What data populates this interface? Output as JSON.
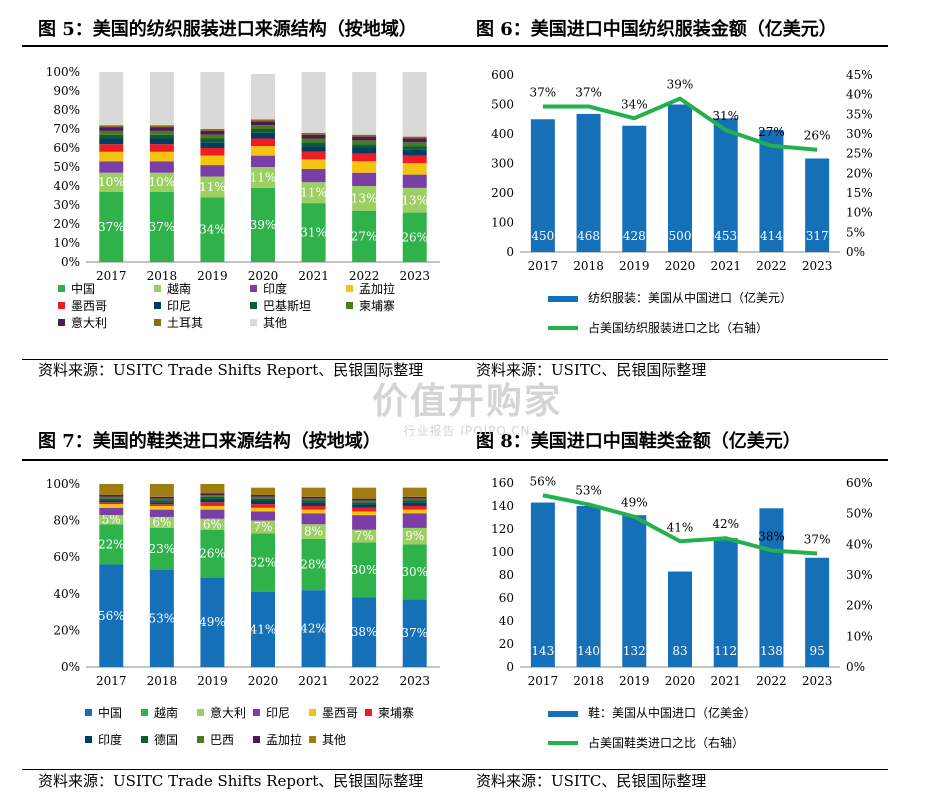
{
  "titles": {
    "fig5": "图 5：美国的纺织服装进口来源结构（按地域）",
    "fig6": "图 6：美国进口中国纺织服装金额（亿美元）",
    "fig7": "图 7：美国的鞋类进口来源结构（按地域）",
    "fig8": "图 8：美国进口中国鞋类金额（亿美元）"
  },
  "sources": {
    "fig5": "资料来源：USITC Trade Shifts Report、民银国际整理",
    "fig6": "资料来源：USITC、民银国际整理",
    "fig7": "资料来源：USITC Trade Shifts Report、民银国际整理",
    "fig8": "资料来源：USITC、民银国际整理"
  },
  "watermark": {
    "line1": "价值开购家",
    "line2": "行业报告 IPOIPO.CN"
  },
  "chart_data": [
    {
      "id": "fig5",
      "type": "bar",
      "stacked": true,
      "categories": [
        "2017",
        "2018",
        "2019",
        "2020",
        "2021",
        "2022",
        "2023"
      ],
      "ylim": [
        0,
        100
      ],
      "yticks": [
        "0%",
        "10%",
        "20%",
        "30%",
        "40%",
        "50%",
        "60%",
        "70%",
        "80%",
        "90%",
        "100%"
      ],
      "grid": false,
      "legend": "bottom",
      "series": [
        {
          "name": "中国",
          "color": "#2fb24a",
          "values": [
            37,
            37,
            34,
            39,
            31,
            27,
            26
          ],
          "labels": [
            "37%",
            "37%",
            "34%",
            "39%",
            "31%",
            "27%",
            "26%"
          ]
        },
        {
          "name": "越南",
          "color": "#9bcf63",
          "values": [
            10,
            10,
            11,
            11,
            11,
            13,
            13
          ],
          "labels": [
            "10%",
            "10%",
            "11%",
            "11%",
            "11%",
            "13%",
            "13%"
          ]
        },
        {
          "name": "印度",
          "color": "#7a3fa6",
          "values": [
            6,
            6,
            6,
            6,
            7,
            7,
            7
          ]
        },
        {
          "name": "孟加拉",
          "color": "#f5c412",
          "values": [
            5,
            5,
            5,
            5,
            5,
            6,
            6
          ]
        },
        {
          "name": "墨西哥",
          "color": "#ee1c25",
          "values": [
            4,
            4,
            4,
            4,
            4,
            4,
            4
          ]
        },
        {
          "name": "印尼",
          "color": "#003d62",
          "values": [
            3,
            3,
            3,
            3,
            3,
            3,
            3
          ]
        },
        {
          "name": "巴基斯坦",
          "color": "#0d5d2d",
          "values": [
            2,
            2,
            2,
            2,
            2,
            2,
            2
          ]
        },
        {
          "name": "柬埔寨",
          "color": "#4a7b1f",
          "values": [
            2,
            2,
            2,
            2,
            2,
            2,
            2
          ]
        },
        {
          "name": "意大利",
          "color": "#4b1a5a",
          "values": [
            2,
            2,
            2,
            2,
            2,
            2,
            2
          ]
        },
        {
          "name": "土耳其",
          "color": "#8f6b12",
          "values": [
            1,
            1,
            1,
            1,
            1,
            1,
            1
          ]
        },
        {
          "name": "其他",
          "color": "#d9d9d9",
          "values": [
            28,
            28,
            30,
            24,
            32,
            33,
            34
          ]
        }
      ],
      "legend_rows": [
        [
          "中国",
          "越南",
          "印度",
          "孟加拉"
        ],
        [
          "墨西哥",
          "印尼",
          "巴基斯坦",
          "柬埔寨"
        ],
        [
          "意大利",
          "土耳其",
          "其他"
        ]
      ]
    },
    {
      "id": "fig6",
      "type": "bar",
      "categories": [
        "2017",
        "2018",
        "2019",
        "2020",
        "2021",
        "2022",
        "2023"
      ],
      "ylim": [
        0,
        600
      ],
      "yticks": [
        "0",
        "100",
        "200",
        "300",
        "400",
        "500",
        "600"
      ],
      "y2lim": [
        0,
        45
      ],
      "y2ticks": [
        "0%",
        "5%",
        "10%",
        "15%",
        "20%",
        "25%",
        "30%",
        "35%",
        "40%",
        "45%"
      ],
      "grid": false,
      "legend": "bottom",
      "series": [
        {
          "name": "纺织服装：美国从中国进口（亿美元）",
          "kind": "bar",
          "axis": "left",
          "color": "#1570b8",
          "values": [
            450,
            468,
            428,
            500,
            453,
            414,
            317
          ],
          "labels": [
            "450",
            "468",
            "428",
            "500",
            "453",
            "414",
            "317"
          ]
        },
        {
          "name": "占美国纺织服装进口之比（右轴）",
          "kind": "line",
          "axis": "right",
          "color": "#22b14c",
          "values": [
            37,
            37,
            34,
            39,
            31,
            27,
            26
          ],
          "labels": [
            "37%",
            "37%",
            "34%",
            "39%",
            "31%",
            "27%",
            "26%"
          ]
        }
      ]
    },
    {
      "id": "fig7",
      "type": "bar",
      "stacked": true,
      "categories": [
        "2017",
        "2018",
        "2019",
        "2020",
        "2021",
        "2022",
        "2023"
      ],
      "ylim": [
        0,
        100
      ],
      "yticks": [
        "0%",
        "20%",
        "40%",
        "60%",
        "80%",
        "100%"
      ],
      "grid": false,
      "legend": "bottom",
      "series": [
        {
          "name": "中国",
          "color": "#1570b8",
          "values": [
            56,
            53,
            49,
            41,
            42,
            38,
            37
          ],
          "labels": [
            "56%",
            "53%",
            "49%",
            "41%",
            "42%",
            "38%",
            "37%"
          ]
        },
        {
          "name": "越南",
          "color": "#2fb24a",
          "values": [
            22,
            23,
            26,
            32,
            28,
            30,
            30
          ],
          "labels": [
            "22%",
            "23%",
            "26%",
            "32%",
            "28%",
            "30%",
            "30%"
          ]
        },
        {
          "name": "意大利",
          "color": "#9bcf63",
          "values": [
            5,
            6,
            6,
            7,
            8,
            7,
            9
          ],
          "labels": [
            "5%",
            "6%",
            "6%",
            "7%",
            "8%",
            "7%",
            "9%"
          ]
        },
        {
          "name": "印尼",
          "color": "#7a3fa6",
          "values": [
            4,
            4,
            5,
            5,
            6,
            8,
            8
          ]
        },
        {
          "name": "墨西哥",
          "color": "#f5c412",
          "values": [
            2,
            2,
            2,
            2,
            2,
            2,
            2
          ]
        },
        {
          "name": "柬埔寨",
          "color": "#ee1c25",
          "values": [
            1,
            1,
            2,
            2,
            2,
            2,
            2
          ]
        },
        {
          "name": "印度",
          "color": "#003d62",
          "values": [
            1,
            1,
            2,
            2,
            2,
            2,
            2
          ]
        },
        {
          "name": "德国",
          "color": "#0d5d2d",
          "values": [
            1,
            1,
            1,
            1,
            1,
            1,
            1
          ]
        },
        {
          "name": "巴西",
          "color": "#4a7b1f",
          "values": [
            1,
            1,
            1,
            1,
            1,
            1,
            1
          ]
        },
        {
          "name": "孟加拉",
          "color": "#4b1a5a",
          "values": [
            1,
            1,
            1,
            1,
            1,
            1,
            1
          ]
        },
        {
          "name": "其他",
          "color": "#a07d12",
          "values": [
            6,
            7,
            5,
            4,
            5,
            6,
            5
          ]
        }
      ],
      "legend_rows": [
        [
          "中国",
          "越南",
          "意大利",
          "印尼",
          "墨西哥",
          "柬埔寨"
        ],
        [
          "印度",
          "德国",
          "巴西",
          "孟加拉",
          "其他"
        ]
      ]
    },
    {
      "id": "fig8",
      "type": "bar",
      "categories": [
        "2017",
        "2018",
        "2019",
        "2020",
        "2021",
        "2022",
        "2023"
      ],
      "ylim": [
        0,
        160
      ],
      "yticks": [
        "0",
        "20",
        "40",
        "60",
        "80",
        "100",
        "120",
        "140",
        "160"
      ],
      "y2lim": [
        0,
        60
      ],
      "y2ticks": [
        "0%",
        "10%",
        "20%",
        "30%",
        "40%",
        "50%",
        "60%"
      ],
      "grid": false,
      "legend": "bottom",
      "series": [
        {
          "name": "鞋：美国从中国进口（亿美金）",
          "kind": "bar",
          "axis": "left",
          "color": "#1570b8",
          "values": [
            143,
            140,
            132,
            83,
            112,
            138,
            95
          ],
          "labels": [
            "143",
            "140",
            "132",
            "83",
            "112",
            "138",
            "95"
          ]
        },
        {
          "name": "占美国鞋类进口之比（右轴）",
          "kind": "line",
          "axis": "right",
          "color": "#22b14c",
          "values": [
            56,
            53,
            49,
            41,
            42,
            38,
            37
          ],
          "labels": [
            "56%",
            "53%",
            "49%",
            "41%",
            "42%",
            "38%",
            "37%"
          ]
        }
      ]
    }
  ]
}
